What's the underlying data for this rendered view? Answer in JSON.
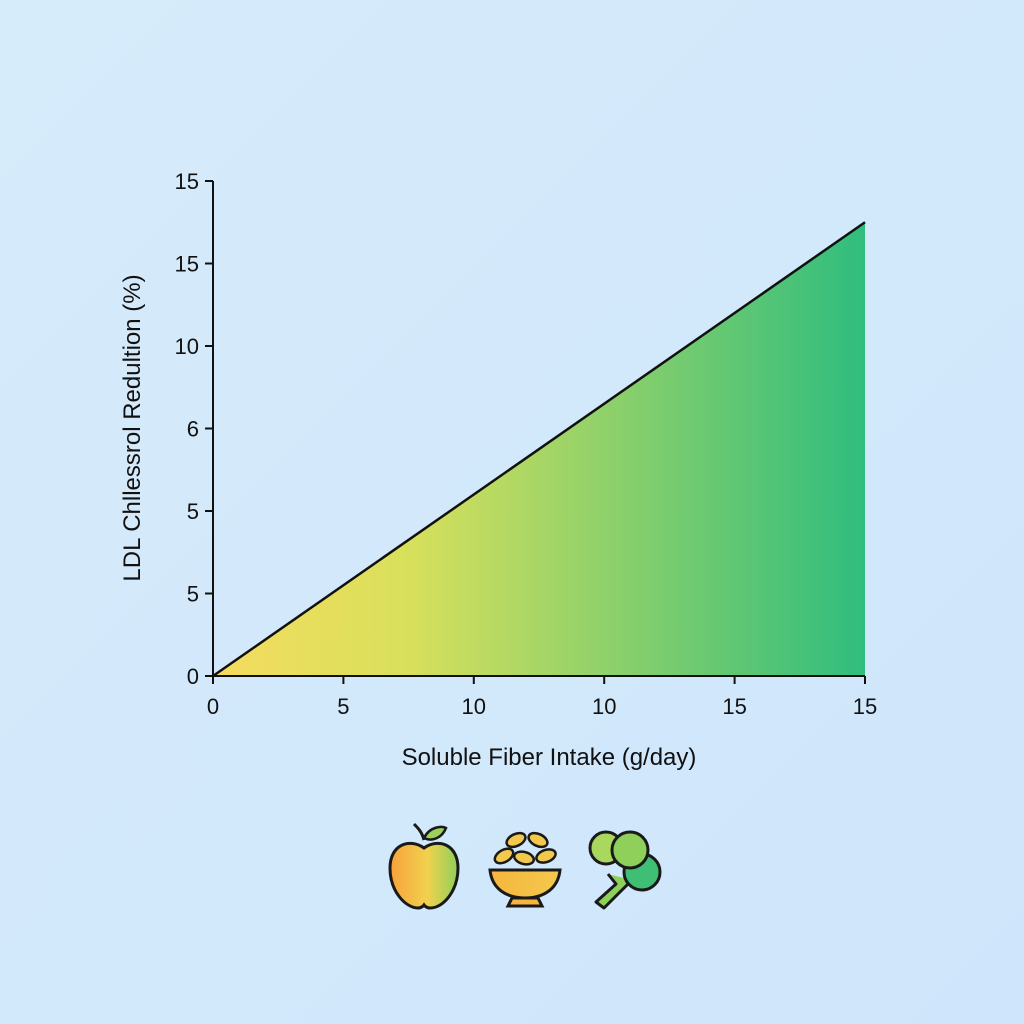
{
  "chart_data": {
    "type": "area",
    "xlabel": "Soluble Fiber Intake (g/day)",
    "ylabel": "LDL Chllessrol Redultion (%)",
    "x_ticks": [
      "0",
      "5",
      "10",
      "10",
      "15",
      "15"
    ],
    "y_ticks": [
      "0",
      "5",
      "5",
      "6",
      "10",
      "15",
      "15"
    ],
    "x": [
      0,
      25
    ],
    "y": [
      0,
      16.5
    ],
    "xlim": [
      0,
      25
    ],
    "ylim": [
      0,
      18
    ],
    "grid": false,
    "fill_gradient": [
      "#f5dc5f",
      "#d8e05b",
      "#2fbd7e"
    ]
  },
  "icons": [
    "apple-icon",
    "seed-bowl-icon",
    "broccoli-icon"
  ],
  "colors": {
    "line": "#111111",
    "axis": "#111111"
  }
}
